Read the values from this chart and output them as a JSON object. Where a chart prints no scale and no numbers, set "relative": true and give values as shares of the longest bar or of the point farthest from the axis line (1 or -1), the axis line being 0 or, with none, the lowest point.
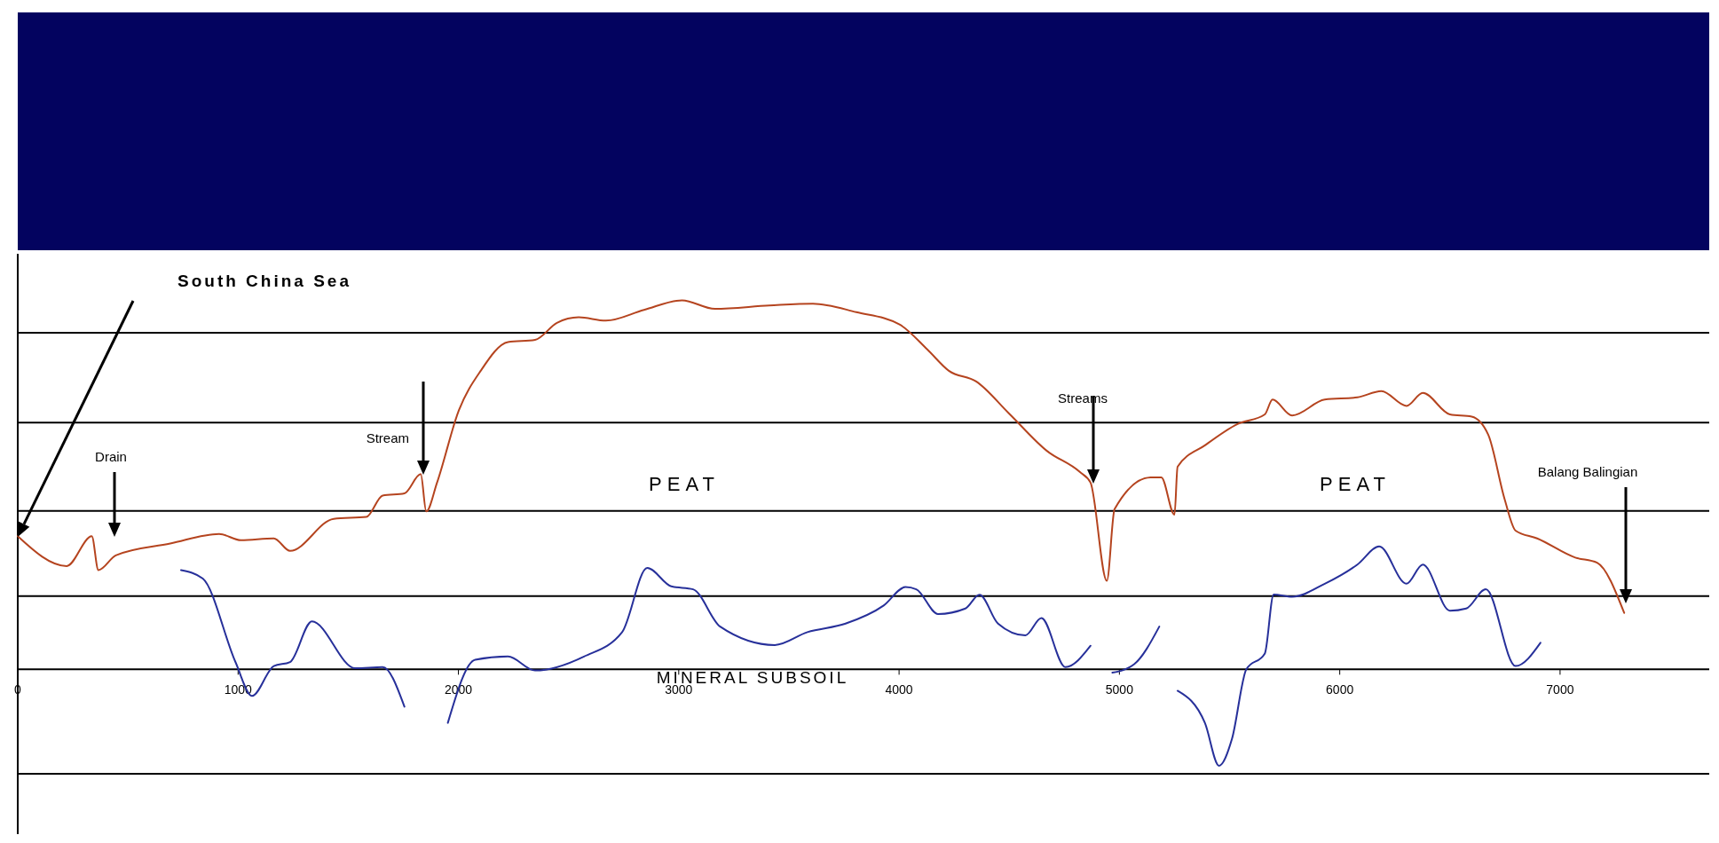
{
  "chart_data": {
    "type": "line",
    "relative": true,
    "xlim": [
      0,
      7677
    ],
    "xticks": [
      0,
      1000,
      2000,
      3000,
      4000,
      5000,
      6000,
      7000
    ],
    "marker": "none",
    "line_style": "solid",
    "tick_labels": "x",
    "series": [
      {
        "color": "#b5441f",
        "x": [
          0,
          222,
          336,
          366,
          445,
          692,
          914,
          1013,
          1162,
          1236,
          1434,
          1582,
          1656,
          1755,
          1829,
          1854,
          1903,
          2002,
          2101,
          2225,
          2348,
          2447,
          2546,
          2669,
          2842,
          3015,
          3164,
          3411,
          3609,
          3806,
          4004,
          4128,
          4226,
          4350,
          4498,
          4671,
          4820,
          4869,
          4943,
          4978,
          5141,
          5190,
          5250,
          5264,
          5388,
          5536,
          5660,
          5695,
          5784,
          5932,
          6080,
          6189,
          6303,
          6377,
          6500,
          6599,
          6674,
          6748,
          6798,
          6896,
          7069,
          7168,
          7291
        ],
        "values": [
          0.361,
          0.28,
          0.361,
          0.269,
          0.309,
          0.341,
          0.367,
          0.35,
          0.355,
          0.321,
          0.408,
          0.413,
          0.471,
          0.477,
          0.529,
          0.428,
          0.506,
          0.702,
          0.809,
          0.887,
          0.893,
          0.939,
          0.954,
          0.945,
          0.974,
          1,
          0.977,
          0.986,
          0.991,
          0.968,
          0.934,
          0.867,
          0.809,
          0.78,
          0.694,
          0.592,
          0.535,
          0.506,
          0.24,
          0.434,
          0.52,
          0.52,
          0.419,
          0.549,
          0.607,
          0.665,
          0.691,
          0.731,
          0.688,
          0.731,
          0.737,
          0.754,
          0.714,
          0.749,
          0.691,
          0.685,
          0.636,
          0.462,
          0.376,
          0.355,
          0.303,
          0.289,
          0.153
        ]
      },
      {
        "color": "#27309a",
        "x": [
          741,
          840,
          988,
          1063,
          1162,
          1236,
          1335,
          1532,
          1656,
          1755,
          1850,
          1952,
          2076,
          2225,
          2348,
          2570,
          2743,
          2857,
          2966,
          3065,
          3188,
          3436,
          3584,
          3757,
          3930,
          4029,
          4078,
          4177,
          4301,
          4365,
          4449,
          4573,
          4646,
          4755,
          4869,
          4920,
          4968,
          5067,
          5181,
          5220,
          5264,
          5388,
          5452,
          5511,
          5576,
          5660,
          5700,
          5784,
          5932,
          6080,
          6179,
          6303,
          6377,
          6500,
          6574,
          6663,
          6798,
          6911
        ],
        "values": [
          0.269,
          0.246,
          0.02,
          -0.072,
          0.009,
          0.02,
          0.13,
          0.003,
          0.006,
          -0.101,
          null,
          -0.145,
          0.026,
          0.035,
          -0.003,
          0.035,
          0.101,
          0.275,
          0.225,
          0.217,
          0.116,
          0.066,
          0.101,
          0.124,
          0.173,
          0.223,
          0.217,
          0.15,
          0.165,
          0.202,
          0.124,
          0.092,
          0.139,
          0.006,
          0.064,
          null,
          -0.009,
          0.014,
          0.116,
          null,
          -0.058,
          -0.145,
          -0.261,
          -0.188,
          0,
          0.043,
          0.203,
          0.197,
          0.232,
          0.284,
          0.333,
          0.232,
          0.284,
          0.159,
          0.165,
          0.217,
          0.009,
          0.072
        ]
      }
    ],
    "annotations": [
      "South China Sea",
      "Drain",
      "Stream",
      "Streams",
      "Balang Balingian",
      "PEAT",
      "PEAT",
      "MINERAL SUBSOIL"
    ]
  }
}
